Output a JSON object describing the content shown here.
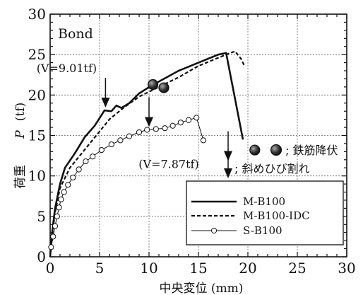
{
  "chart_data": {
    "type": "line",
    "title": "Bond",
    "xlabel": "中央変位 (mm)",
    "ylabel_main": "荷重",
    "ylabel_var": "P",
    "ylabel_unit": "(tf)",
    "xlim": [
      0,
      30
    ],
    "ylim": [
      0,
      30
    ],
    "xticks": [
      "0",
      "5",
      "10",
      "15",
      "20",
      "25",
      "30"
    ],
    "yticks": [
      "0",
      "5",
      "10",
      "15",
      "20",
      "25",
      "30"
    ],
    "grid": true,
    "legend_position": "bottom-right",
    "series": [
      {
        "name": "M-B100",
        "style": "solid",
        "values": [
          [
            0,
            0
          ],
          [
            0.2,
            3
          ],
          [
            0.5,
            6
          ],
          [
            1,
            9
          ],
          [
            1.5,
            11
          ],
          [
            2.5,
            12.8
          ],
          [
            3.5,
            14.8
          ],
          [
            4.5,
            16.2
          ],
          [
            5.5,
            18.1
          ],
          [
            6.2,
            18.0
          ],
          [
            6.7,
            18.7
          ],
          [
            7.2,
            18.4
          ],
          [
            8,
            19
          ],
          [
            9,
            20.2
          ],
          [
            10.3,
            21.2
          ],
          [
            11.5,
            22
          ],
          [
            13,
            23
          ],
          [
            15,
            24
          ],
          [
            17,
            25
          ],
          [
            17.8,
            25.2
          ],
          [
            19.5,
            14.5
          ]
        ]
      },
      {
        "name": "M-B100-IDC",
        "style": "dashed",
        "values": [
          [
            0,
            0
          ],
          [
            0.2,
            2.5
          ],
          [
            0.5,
            5.5
          ],
          [
            1,
            8.5
          ],
          [
            2,
            11
          ],
          [
            3,
            12.5
          ],
          [
            4,
            14
          ],
          [
            5,
            15.5
          ],
          [
            6,
            17
          ],
          [
            7.5,
            18.5
          ],
          [
            9,
            19.8
          ],
          [
            11,
            21
          ],
          [
            13,
            22.2
          ],
          [
            15,
            23.6
          ],
          [
            17,
            24.6
          ],
          [
            18.2,
            25.2
          ],
          [
            18.7,
            25.4
          ],
          [
            19.3,
            24.5
          ],
          [
            19.7,
            23.5
          ]
        ]
      },
      {
        "name": "S-B100",
        "style": "solid-marker",
        "values": [
          [
            0,
            0
          ],
          [
            0.1,
            1.2
          ],
          [
            0.3,
            2.5
          ],
          [
            0.5,
            3.8
          ],
          [
            0.7,
            5
          ],
          [
            0.9,
            6.1
          ],
          [
            1.1,
            7.1
          ],
          [
            1.4,
            8
          ],
          [
            1.8,
            8.9
          ],
          [
            2.3,
            9.8
          ],
          [
            2.9,
            10.8
          ],
          [
            3.6,
            11.8
          ],
          [
            4.3,
            12.4
          ],
          [
            5.2,
            13.2
          ],
          [
            6.2,
            13.9
          ],
          [
            7.1,
            14.4
          ],
          [
            8,
            14.9
          ],
          [
            9,
            15.4
          ],
          [
            9.8,
            15.7
          ],
          [
            10.7,
            15.8
          ],
          [
            11.6,
            15.9
          ],
          [
            12.4,
            16.2
          ],
          [
            13.2,
            16.6
          ],
          [
            14,
            16.9
          ],
          [
            14.8,
            17.2
          ],
          [
            15.5,
            14.4
          ]
        ]
      }
    ],
    "markers": [
      {
        "label": "鉄筋降伏",
        "points": [
          [
            10.4,
            21.3
          ],
          [
            11.5,
            20.9
          ],
          [
            20.7,
            13.2
          ]
        ]
      }
    ],
    "arrow_label": "斜めひび割れ",
    "arrows": [
      {
        "x": 5.6,
        "y": 18.1,
        "label": "(V=9.01tf)"
      },
      {
        "x": 10.0,
        "y": 15.7,
        "label": "(V=7.87tf)"
      },
      {
        "x": 18.0,
        "y": 11.5,
        "label": ""
      }
    ],
    "legend_labels": [
      "M-B100",
      "M-B100-IDC",
      "S-B100"
    ],
    "annot_yield": "; 鉄筋降伏",
    "annot_crack": "; 斜めひび割れ"
  }
}
